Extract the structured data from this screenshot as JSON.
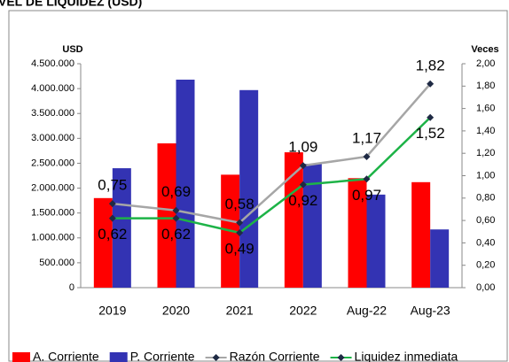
{
  "chart_data": {
    "type": "bar_line",
    "title": "VEL DE LIQUIDEZ (USD)",
    "y_label": "USD",
    "y2_label": "Veces",
    "categories": [
      "2019",
      "2020",
      "2021",
      "2022",
      "Aug-22",
      "Aug-23"
    ],
    "series": [
      {
        "name": "A. Corriente",
        "type": "bar",
        "color": "#ff0000",
        "values": [
          1800000,
          2900000,
          2270000,
          2720000,
          2200000,
          2120000
        ]
      },
      {
        "name": "P. Corriente",
        "type": "bar",
        "color": "#3333b3",
        "values": [
          2400000,
          4180000,
          3970000,
          2490000,
          1870000,
          1170000
        ]
      },
      {
        "name": "Razón Corriente",
        "type": "line",
        "axis": "y2",
        "color": "#a6a6a6",
        "marker_color": "#1f2a44",
        "values": [
          0.75,
          0.69,
          0.58,
          1.09,
          1.17,
          1.82
        ],
        "value_labels": [
          "0,75",
          "0,69",
          "0,58",
          "1,09",
          "1,17",
          "1,82"
        ]
      },
      {
        "name": "Liquidez inmediata",
        "type": "line",
        "axis": "y2",
        "color": "#1db347",
        "marker_color": "#1f2a44",
        "values": [
          0.62,
          0.62,
          0.49,
          0.92,
          0.97,
          1.52
        ],
        "value_labels": [
          "0,62",
          "0,62",
          "0,49",
          "0,92",
          "0,97",
          "1,52"
        ]
      }
    ],
    "ylim": [
      0,
      4500000
    ],
    "yticks": [
      0,
      {
        "value": 500000,
        "label": "500.000"
      },
      {
        "value": 1000000,
        "label": "1.000.000"
      },
      {
        "value": 1500000,
        "label": "1.500.000"
      },
      {
        "value": 2000000,
        "label": "2.000.000"
      },
      {
        "value": 2500000,
        "label": "2.500.000"
      },
      {
        "value": 3000000,
        "label": "3.000.000"
      },
      {
        "value": 3500000,
        "label": "3.500.000"
      },
      {
        "value": 4000000,
        "label": "4.000.000"
      },
      {
        "value": 4500000,
        "label": "4.500.000"
      }
    ],
    "y2lim": [
      0,
      2
    ],
    "y2ticks": [
      {
        "value": 0,
        "label": "0,00"
      },
      {
        "value": 0.2,
        "label": "0,20"
      },
      {
        "value": 0.4,
        "label": "0,40"
      },
      {
        "value": 0.6,
        "label": "0,60"
      },
      {
        "value": 0.8,
        "label": "0,80"
      },
      {
        "value": 1,
        "label": "1,00"
      },
      {
        "value": 1.2,
        "label": "1,20"
      },
      {
        "value": 1.4,
        "label": "1,40"
      },
      {
        "value": 1.6,
        "label": "1,60"
      },
      {
        "value": 1.8,
        "label": "1,80"
      },
      {
        "value": 2,
        "label": "2,00"
      }
    ],
    "legend": "bottom"
  }
}
